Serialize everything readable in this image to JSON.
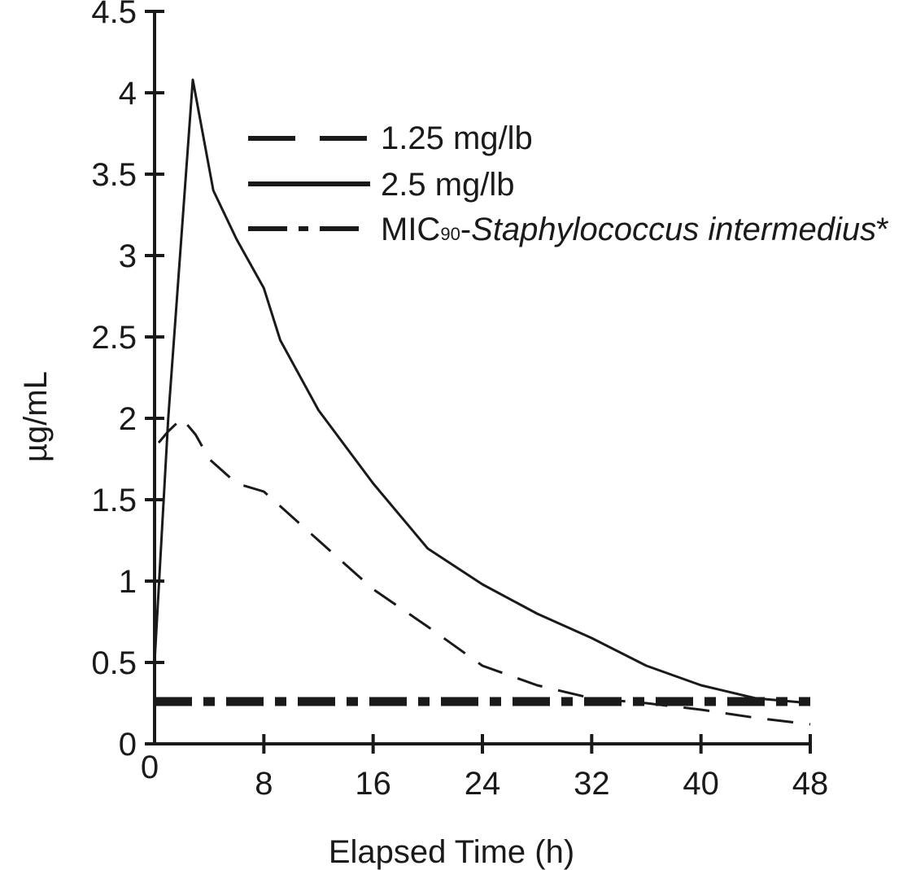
{
  "chart_data": {
    "type": "line",
    "xlabel": "Elapsed Time (h)",
    "ylabel": "µg/mL",
    "xlim": [
      0,
      48
    ],
    "ylim": [
      0,
      4.5
    ],
    "x_ticks": [
      0,
      8,
      16,
      24,
      32,
      40,
      48
    ],
    "x_tick_labels": [
      "0",
      "8",
      "16",
      "24",
      "32",
      "40",
      "48"
    ],
    "y_ticks": [
      0,
      0.5,
      1,
      1.5,
      2,
      2.5,
      3,
      3.5,
      4,
      4.5
    ],
    "y_tick_labels": [
      "0",
      "0.5",
      "1",
      "1.5",
      "2",
      "2.5",
      "3",
      "3.5",
      "4",
      "4.5"
    ],
    "grid": false,
    "legend_position": "top-right",
    "series": [
      {
        "name": "1.25 mg/lb",
        "style": "dashed",
        "x": [
          0.3,
          1,
          2,
          3,
          4,
          6,
          8,
          12,
          16,
          20,
          24,
          28,
          32,
          36,
          40,
          44,
          48
        ],
        "y": [
          1.85,
          1.92,
          2.0,
          1.9,
          1.75,
          1.6,
          1.55,
          1.25,
          0.95,
          0.72,
          0.48,
          0.36,
          0.28,
          0.25,
          0.21,
          0.16,
          0.12
        ]
      },
      {
        "name": "2.5 mg/lb",
        "style": "solid",
        "x": [
          0,
          1,
          2.8,
          4.3,
          6,
          8,
          9.2,
          12,
          16,
          20,
          24,
          28,
          32,
          36,
          40,
          44,
          48
        ],
        "y": [
          0.5,
          2.0,
          4.08,
          3.4,
          3.1,
          2.8,
          2.48,
          2.05,
          1.6,
          1.2,
          0.98,
          0.8,
          0.65,
          0.48,
          0.36,
          0.28,
          0.25
        ]
      },
      {
        "name_prefix": "MIC",
        "name_subscript": "90",
        "name_sep": "-",
        "name_italic": "Staphylococcus intermedius",
        "name_suffix": "*",
        "style": "dash-dot",
        "x": [
          0,
          48
        ],
        "y": [
          0.26,
          0.26
        ]
      }
    ]
  }
}
